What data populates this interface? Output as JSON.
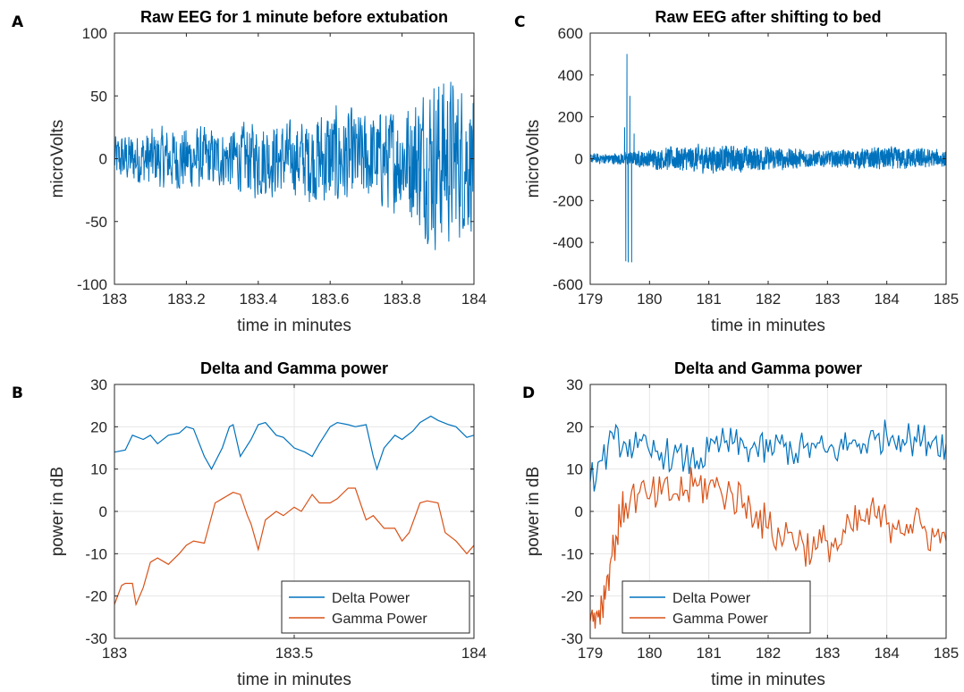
{
  "colors": {
    "delta": "#0072BD",
    "gamma": "#D95319",
    "grid": "#e6e6e6",
    "axis": "#262626"
  },
  "charts": [
    {
      "panel": "A",
      "chart_data": {
        "type": "line",
        "title": "Raw EEG for 1 minute before extubation",
        "xlabel": "time in minutes",
        "ylabel": "microVolts",
        "xlim": [
          183,
          184
        ],
        "ylim": [
          -100,
          100
        ],
        "xticks": [
          183,
          183.2,
          183.4,
          183.6,
          183.8,
          184
        ],
        "xtick_labels": [
          "183",
          "183.2",
          "183.4",
          "183.6",
          "183.8",
          "184"
        ],
        "yticks": [
          -100,
          -50,
          0,
          50,
          100
        ],
        "ytick_labels": [
          "-100",
          "-50",
          "0",
          "50",
          "100"
        ],
        "grid": false,
        "series": [
          {
            "color": "#0072BD",
            "envelope": [
              {
                "x": 183.0,
                "amp": 20
              },
              {
                "x": 183.1,
                "amp": 25
              },
              {
                "x": 183.2,
                "amp": 28
              },
              {
                "x": 183.3,
                "amp": 24
              },
              {
                "x": 183.4,
                "amp": 33
              },
              {
                "x": 183.5,
                "amp": 30
              },
              {
                "x": 183.6,
                "amp": 45
              },
              {
                "x": 183.7,
                "amp": 38
              },
              {
                "x": 183.8,
                "amp": 45
              },
              {
                "x": 183.9,
                "amp": 75
              },
              {
                "x": 184.0,
                "amp": 60
              }
            ]
          }
        ]
      }
    },
    {
      "panel": "C",
      "chart_data": {
        "type": "line",
        "title": "Raw EEG after shifting to bed",
        "xlabel": "time in minutes",
        "ylabel": "microVolts",
        "xlim": [
          179,
          185
        ],
        "ylim": [
          -600,
          600
        ],
        "xticks": [
          179,
          180,
          181,
          182,
          183,
          184,
          185
        ],
        "xtick_labels": [
          "179",
          "180",
          "181",
          "182",
          "183",
          "184",
          "185"
        ],
        "yticks": [
          -600,
          -400,
          -200,
          0,
          200,
          400,
          600
        ],
        "ytick_labels": [
          "-600",
          "-400",
          "-200",
          "0",
          "200",
          "400",
          "600"
        ],
        "grid": false,
        "series": [
          {
            "color": "#0072BD",
            "envelope": [
              {
                "x": 179.0,
                "amp": 25
              },
              {
                "x": 179.5,
                "amp": 30
              },
              {
                "x": 179.8,
                "amp": 40
              },
              {
                "x": 180.5,
                "amp": 65
              },
              {
                "x": 181.0,
                "amp": 70
              },
              {
                "x": 182.0,
                "amp": 60
              },
              {
                "x": 183.0,
                "amp": 40
              },
              {
                "x": 184.0,
                "amp": 60
              },
              {
                "x": 185.0,
                "amp": 45
              }
            ],
            "spikes": [
              {
                "x": 179.58,
                "y": 150
              },
              {
                "x": 179.6,
                "y": -490
              },
              {
                "x": 179.62,
                "y": 500
              },
              {
                "x": 179.64,
                "y": -495
              },
              {
                "x": 179.67,
                "y": 300
              },
              {
                "x": 179.7,
                "y": -495
              },
              {
                "x": 179.74,
                "y": 120
              }
            ]
          }
        ]
      }
    },
    {
      "panel": "B",
      "chart_data": {
        "type": "line",
        "title": "Delta and Gamma power",
        "xlabel": "time in minutes",
        "ylabel": "power in dB",
        "xlim": [
          183,
          184
        ],
        "ylim": [
          -30,
          30
        ],
        "xticks": [
          183,
          183.5,
          184
        ],
        "xtick_labels": [
          "183",
          "183.5",
          "184"
        ],
        "yticks": [
          -30,
          -20,
          -10,
          0,
          10,
          20,
          30
        ],
        "ytick_labels": [
          "-30",
          "-20",
          "-10",
          "0",
          "10",
          "20",
          "30"
        ],
        "grid": true,
        "legend": "bottom-right",
        "series": [
          {
            "name": "Delta Power",
            "color": "#0072BD",
            "x": [
              183.0,
              183.03,
              183.05,
              183.08,
              183.1,
              183.12,
              183.15,
              183.18,
              183.2,
              183.22,
              183.25,
              183.27,
              183.3,
              183.32,
              183.33,
              183.35,
              183.38,
              183.4,
              183.42,
              183.45,
              183.47,
              183.5,
              183.53,
              183.55,
              183.57,
              183.6,
              183.62,
              183.65,
              183.67,
              183.7,
              183.72,
              183.73,
              183.75,
              183.78,
              183.8,
              183.83,
              183.85,
              183.88,
              183.9,
              183.93,
              183.95,
              183.98,
              184.0
            ],
            "y": [
              14,
              14.5,
              18,
              17,
              18,
              16,
              18,
              18.5,
              20,
              19.5,
              13,
              10,
              15,
              20,
              20.5,
              13,
              17,
              20.5,
              21,
              18,
              17.5,
              15,
              14,
              13,
              16,
              20,
              21,
              20.5,
              20,
              20.5,
              13,
              10,
              15,
              18,
              17,
              19,
              21,
              22.5,
              21.5,
              20.5,
              20,
              17.5,
              18
            ]
          },
          {
            "name": "Gamma Power",
            "color": "#D95319",
            "x": [
              183.0,
              183.02,
              183.03,
              183.05,
              183.06,
              183.08,
              183.1,
              183.12,
              183.15,
              183.18,
              183.2,
              183.22,
              183.25,
              183.28,
              183.3,
              183.33,
              183.35,
              183.37,
              183.38,
              183.4,
              183.42,
              183.45,
              183.47,
              183.5,
              183.52,
              183.55,
              183.57,
              183.6,
              183.62,
              183.65,
              183.67,
              183.7,
              183.72,
              183.75,
              183.78,
              183.8,
              183.82,
              183.85,
              183.87,
              183.9,
              183.92,
              183.95,
              183.98,
              184.0
            ],
            "y": [
              -22,
              -17.5,
              -17,
              -17,
              -22,
              -18,
              -12,
              -11,
              -12.5,
              -10,
              -8,
              -7,
              -7.5,
              2,
              3,
              4.5,
              4,
              -1,
              -3,
              -9,
              -2,
              0,
              -1,
              1,
              0,
              4,
              2,
              2,
              3,
              5.5,
              5.5,
              -2,
              -1,
              -4,
              -4,
              -7,
              -5,
              2,
              2.5,
              2,
              -5,
              -7,
              -10,
              -8
            ]
          }
        ]
      }
    },
    {
      "panel": "D",
      "chart_data": {
        "type": "line",
        "title": "Delta and Gamma power",
        "xlabel": "time in minutes",
        "ylabel": "power in dB",
        "xlim": [
          179,
          185
        ],
        "ylim": [
          -30,
          30
        ],
        "xticks": [
          179,
          180,
          181,
          182,
          183,
          184,
          185
        ],
        "xtick_labels": [
          "179",
          "180",
          "181",
          "182",
          "183",
          "184",
          "185"
        ],
        "yticks": [
          -30,
          -20,
          -10,
          0,
          10,
          20,
          30
        ],
        "ytick_labels": [
          "-30",
          "-20",
          "-10",
          "0",
          "10",
          "20",
          "30"
        ],
        "grid": true,
        "legend": "bottom-left",
        "series": [
          {
            "name": "Delta Power",
            "color": "#0072BD",
            "x": [
              179.0,
              179.2,
              179.4,
              179.6,
              179.8,
              180.0,
              180.2,
              180.4,
              180.6,
              180.8,
              181.0,
              181.2,
              181.4,
              181.6,
              181.8,
              182.0,
              182.2,
              182.4,
              182.6,
              182.8,
              183.0,
              183.2,
              183.4,
              183.6,
              183.8,
              184.0,
              184.2,
              184.4,
              184.6,
              184.8,
              185.0
            ],
            "y": [
              7,
              12,
              17,
              16,
              15,
              14,
              14,
              13,
              12,
              12,
              14,
              16,
              16,
              15,
              15,
              14,
              16,
              14,
              15,
              15,
              14,
              15,
              16,
              16,
              17,
              18,
              18,
              17,
              17,
              17,
              16
            ]
          },
          {
            "name": "Gamma Power",
            "color": "#D95319",
            "x": [
              179.0,
              179.1,
              179.2,
              179.3,
              179.4,
              179.5,
              179.6,
              179.8,
              180.0,
              180.2,
              180.4,
              180.6,
              180.8,
              181.0,
              181.2,
              181.4,
              181.6,
              181.8,
              182.0,
              182.2,
              182.4,
              182.6,
              182.8,
              183.0,
              183.2,
              183.4,
              183.6,
              183.8,
              184.0,
              184.2,
              184.4,
              184.6,
              184.8,
              185.0
            ],
            "y": [
              -26,
              -24,
              -22,
              -15,
              -8,
              -2,
              2,
              4,
              3,
              4,
              4,
              5,
              6,
              6,
              5,
              4,
              2,
              0,
              -4,
              -6,
              -5,
              -8,
              -9,
              -7,
              -8,
              -4,
              -2,
              -1,
              -3,
              -2,
              -3,
              -4,
              -6,
              -7
            ]
          }
        ]
      }
    }
  ]
}
